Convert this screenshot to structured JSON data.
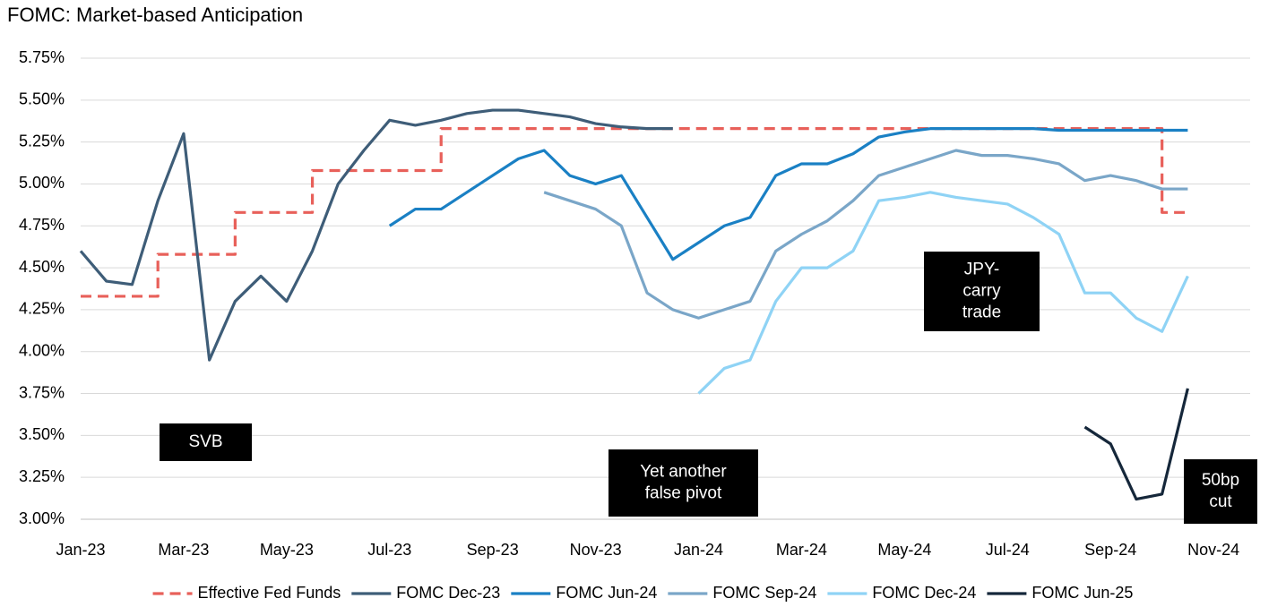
{
  "chart_data": {
    "type": "line",
    "title": "FOMC: Market-based Anticipation",
    "x": [
      "Jan-23",
      null,
      null,
      null,
      "Mar-23",
      null,
      null,
      null,
      "May-23",
      null,
      null,
      null,
      "Jul-23",
      null,
      null,
      null,
      "Sep-23",
      null,
      null,
      null,
      "Nov-23",
      null,
      null,
      null,
      "Jan-24",
      null,
      null,
      null,
      "Mar-24",
      null,
      null,
      null,
      "May-24",
      null,
      null,
      null,
      "Jul-24",
      null,
      null,
      null,
      "Sep-24",
      null,
      null,
      null,
      "Nov-24",
      null
    ],
    "ylim": [
      3,
      5.75
    ],
    "yticks": [
      {
        "value": 3,
        "label": "3.00%"
      },
      {
        "value": 3.25,
        "label": "3.25%"
      },
      {
        "value": 3.5,
        "label": "3.50%"
      },
      {
        "value": 3.75,
        "label": "3.75%"
      },
      {
        "value": 4,
        "label": "4.00%"
      },
      {
        "value": 4.25,
        "label": "4.25%"
      },
      {
        "value": 4.5,
        "label": "4.50%"
      },
      {
        "value": 4.75,
        "label": "4.75%"
      },
      {
        "value": 5,
        "label": "5.00%"
      },
      {
        "value": 5.25,
        "label": "5.25%"
      },
      {
        "value": 5.5,
        "label": "5.50%"
      },
      {
        "value": 5.75,
        "label": "5.75%"
      }
    ],
    "grid": true,
    "legend": "bottom",
    "series": [
      {
        "name": "Effective Fed Funds",
        "color": "#e8605a",
        "style": "dashed",
        "drawstyle": "steps",
        "values": [
          4.33,
          4.33,
          4.33,
          4.58,
          4.58,
          4.58,
          4.83,
          4.83,
          4.83,
          5.08,
          5.08,
          5.08,
          5.08,
          5.08,
          5.33,
          5.33,
          5.33,
          5.33,
          5.33,
          5.33,
          5.33,
          5.33,
          5.33,
          5.33,
          5.33,
          5.33,
          5.33,
          5.33,
          5.33,
          5.33,
          5.33,
          5.33,
          5.33,
          5.33,
          5.33,
          5.33,
          5.33,
          5.33,
          5.33,
          5.33,
          5.33,
          5.33,
          4.83,
          4.83,
          null,
          null
        ]
      },
      {
        "name": "FOMC Dec-23",
        "color": "#3e5d78",
        "values": [
          4.6,
          4.42,
          4.4,
          4.9,
          5.3,
          3.95,
          4.3,
          4.45,
          4.3,
          4.6,
          5.0,
          5.2,
          5.38,
          5.35,
          5.38,
          5.42,
          5.44,
          5.44,
          5.42,
          5.4,
          5.36,
          5.34,
          5.33,
          5.33,
          null,
          null,
          null,
          null,
          null,
          null,
          null,
          null,
          null,
          null,
          null,
          null,
          null,
          null,
          null,
          null,
          null,
          null,
          null,
          null,
          null,
          null
        ]
      },
      {
        "name": "FOMC Jun-24",
        "color": "#1a80c4",
        "values": [
          null,
          null,
          null,
          null,
          null,
          null,
          null,
          null,
          null,
          null,
          null,
          null,
          4.75,
          4.85,
          4.85,
          4.95,
          5.05,
          5.15,
          5.2,
          5.05,
          5.0,
          5.05,
          4.8,
          4.55,
          4.65,
          4.75,
          4.8,
          5.05,
          5.12,
          5.12,
          5.18,
          5.28,
          5.31,
          5.33,
          5.33,
          5.33,
          5.33,
          5.33,
          5.32,
          5.32,
          5.32,
          5.32,
          5.32,
          5.32,
          null,
          null
        ]
      },
      {
        "name": "FOMC Sep-24",
        "color": "#7aa6c8",
        "values": [
          null,
          null,
          null,
          null,
          null,
          null,
          null,
          null,
          null,
          null,
          null,
          null,
          null,
          null,
          null,
          null,
          null,
          null,
          4.95,
          4.9,
          4.85,
          4.75,
          4.35,
          4.25,
          4.2,
          4.25,
          4.3,
          4.6,
          4.7,
          4.78,
          4.9,
          5.05,
          5.1,
          5.15,
          5.2,
          5.17,
          5.17,
          5.15,
          5.12,
          5.02,
          5.05,
          5.02,
          4.97,
          4.97,
          null,
          null
        ]
      },
      {
        "name": "FOMC Dec-24",
        "color": "#8fd3f5",
        "values": [
          null,
          null,
          null,
          null,
          null,
          null,
          null,
          null,
          null,
          null,
          null,
          null,
          null,
          null,
          null,
          null,
          null,
          null,
          null,
          null,
          null,
          null,
          null,
          null,
          3.75,
          3.9,
          3.95,
          4.3,
          4.5,
          4.5,
          4.6,
          4.9,
          4.92,
          4.95,
          4.92,
          4.9,
          4.88,
          4.8,
          4.7,
          4.35,
          4.35,
          4.2,
          4.12,
          4.45,
          null,
          null
        ]
      },
      {
        "name": "FOMC Jun-25",
        "color": "#15273a",
        "values": [
          null,
          null,
          null,
          null,
          null,
          null,
          null,
          null,
          null,
          null,
          null,
          null,
          null,
          null,
          null,
          null,
          null,
          null,
          null,
          null,
          null,
          null,
          null,
          null,
          null,
          null,
          null,
          null,
          null,
          null,
          null,
          null,
          null,
          null,
          null,
          null,
          null,
          null,
          null,
          3.55,
          3.45,
          3.12,
          3.15,
          3.78,
          null,
          null
        ]
      }
    ],
    "annotations": [
      {
        "lines": [
          "SVB"
        ]
      },
      {
        "lines": [
          "Yet another",
          "false pivot"
        ]
      },
      {
        "lines": [
          "JPY-",
          "carry",
          "trade"
        ]
      },
      {
        "lines": [
          "50bp",
          "cut"
        ]
      }
    ]
  }
}
